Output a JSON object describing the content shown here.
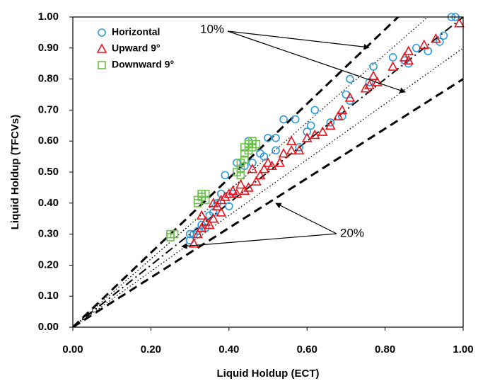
{
  "chart_data": {
    "type": "scatter",
    "xlabel": "Liquid Holdup (ECT)",
    "ylabel": "Liquid Holdup (TFCVs)",
    "xlim": [
      0,
      1
    ],
    "ylim": [
      0,
      1
    ],
    "xticks": [
      {
        "value": 0,
        "label": "0.00"
      },
      {
        "value": 0.2,
        "label": "0.20"
      },
      {
        "value": 0.4,
        "label": "0.40"
      },
      {
        "value": 0.6,
        "label": "0.60"
      },
      {
        "value": 0.8,
        "label": "0.80"
      },
      {
        "value": 1,
        "label": "1.00"
      }
    ],
    "yticks": [
      {
        "value": 0,
        "label": "0.00"
      },
      {
        "value": 0.1,
        "label": "0.10"
      },
      {
        "value": 0.2,
        "label": "0.20"
      },
      {
        "value": 0.3,
        "label": "0.30"
      },
      {
        "value": 0.4,
        "label": "0.40"
      },
      {
        "value": 0.5,
        "label": "0.50"
      },
      {
        "value": 0.6,
        "label": "0.60"
      },
      {
        "value": 0.7,
        "label": "0.70"
      },
      {
        "value": 0.8,
        "label": "0.80"
      },
      {
        "value": 0.9,
        "label": "0.90"
      },
      {
        "value": 1,
        "label": "1.00"
      }
    ],
    "legend": "upper left",
    "annotations": [
      "10%",
      "20%"
    ],
    "reference_lines": [
      {
        "x": [
          0,
          1
        ],
        "y": [
          0,
          1.2
        ],
        "style": "dashed"
      },
      {
        "x": [
          0,
          1
        ],
        "y": [
          0,
          1.1
        ],
        "style": "dotted"
      },
      {
        "x": [
          0,
          1
        ],
        "y": [
          0,
          1
        ],
        "style": "dashdot"
      },
      {
        "x": [
          0,
          1
        ],
        "y": [
          0,
          0.9
        ],
        "style": "dotted"
      },
      {
        "x": [
          0,
          1
        ],
        "y": [
          0,
          0.8
        ],
        "style": "dashed"
      }
    ],
    "series": [
      {
        "name": "Horizontal",
        "color": "#2f9ad8",
        "marker": "circle",
        "x": [
          0.98,
          0.97,
          0.95,
          0.94,
          0.91,
          0.88,
          0.85,
          0.86,
          0.82,
          0.77,
          0.76,
          0.71,
          0.7,
          0.71,
          0.69,
          0.66,
          0.62,
          0.61,
          0.6,
          0.58,
          0.57,
          0.54,
          0.52,
          0.52,
          0.5,
          0.49,
          0.48,
          0.46,
          0.45,
          0.44,
          0.42,
          0.41,
          0.4,
          0.39,
          0.38,
          0.37,
          0.36,
          0.35,
          0.34,
          0.33,
          0.32,
          0.31,
          0.3,
          0.3
        ],
        "values": [
          1.0,
          1.0,
          0.94,
          0.92,
          0.89,
          0.9,
          0.86,
          0.85,
          0.87,
          0.84,
          0.79,
          0.8,
          0.75,
          0.73,
          0.68,
          0.66,
          0.7,
          0.65,
          0.63,
          0.58,
          0.67,
          0.67,
          0.61,
          0.57,
          0.61,
          0.55,
          0.56,
          0.53,
          0.6,
          0.52,
          0.53,
          0.43,
          0.39,
          0.49,
          0.43,
          0.4,
          0.37,
          0.36,
          0.32,
          0.33,
          0.31,
          0.3,
          0.28,
          0.3
        ]
      },
      {
        "name": "Upward 9°",
        "color": "#e8141c",
        "marker": "triangle",
        "x": [
          0.99,
          0.93,
          0.9,
          0.86,
          0.85,
          0.86,
          0.82,
          0.78,
          0.77,
          0.76,
          0.75,
          0.71,
          0.69,
          0.68,
          0.66,
          0.64,
          0.62,
          0.6,
          0.58,
          0.56,
          0.56,
          0.54,
          0.53,
          0.51,
          0.5,
          0.49,
          0.48,
          0.47,
          0.46,
          0.45,
          0.44,
          0.43,
          0.42,
          0.41,
          0.4,
          0.39,
          0.38,
          0.38,
          0.37,
          0.36,
          0.36,
          0.35,
          0.34,
          0.33,
          0.33,
          0.32,
          0.31
        ],
        "values": [
          0.98,
          0.93,
          0.91,
          0.89,
          0.87,
          0.86,
          0.84,
          0.79,
          0.81,
          0.78,
          0.77,
          0.74,
          0.7,
          0.68,
          0.65,
          0.63,
          0.62,
          0.61,
          0.57,
          0.6,
          0.57,
          0.56,
          0.53,
          0.52,
          0.53,
          0.51,
          0.49,
          0.47,
          0.51,
          0.45,
          0.44,
          0.46,
          0.43,
          0.44,
          0.43,
          0.42,
          0.41,
          0.37,
          0.39,
          0.35,
          0.4,
          0.33,
          0.34,
          0.32,
          0.36,
          0.3,
          0.27
        ]
      },
      {
        "name": "Downward 9°",
        "color": "#6cc04a",
        "marker": "square",
        "x": [
          0.25,
          0.25,
          0.26,
          0.32,
          0.33,
          0.33,
          0.34,
          0.34,
          0.32,
          0.42,
          0.43,
          0.43,
          0.43,
          0.44,
          0.44,
          0.45,
          0.45,
          0.46,
          0.47,
          0.44,
          0.46
        ],
        "values": [
          0.29,
          0.3,
          0.3,
          0.41,
          0.42,
          0.43,
          0.43,
          0.41,
          0.4,
          0.5,
          0.51,
          0.49,
          0.53,
          0.56,
          0.58,
          0.57,
          0.59,
          0.58,
          0.59,
          0.54,
          0.6
        ]
      }
    ]
  }
}
